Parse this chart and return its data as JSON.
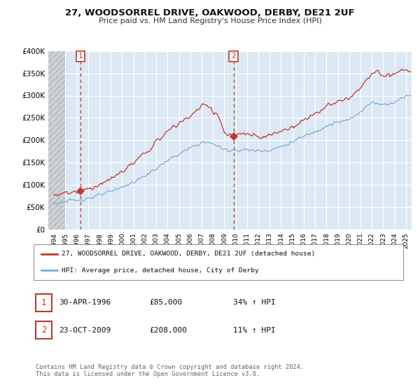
{
  "title": "27, WOODSORREL DRIVE, OAKWOOD, DERBY, DE21 2UF",
  "subtitle": "Price paid vs. HM Land Registry's House Price Index (HPI)",
  "ylim": [
    0,
    400000
  ],
  "yticks": [
    0,
    50000,
    100000,
    150000,
    200000,
    250000,
    300000,
    350000,
    400000
  ],
  "ytick_labels": [
    "£0",
    "£50K",
    "£100K",
    "£150K",
    "£200K",
    "£250K",
    "£300K",
    "£350K",
    "£400K"
  ],
  "background_color": "#ffffff",
  "plot_bg_color": "#dce9f5",
  "grid_color": "#ffffff",
  "hpi_color": "#7aadd4",
  "price_color": "#c0392b",
  "sale1_year": 1996.33,
  "sale1_price": 85000,
  "sale2_year": 2009.81,
  "sale2_price": 208000,
  "legend_entry1": "27, WOODSORREL DRIVE, OAKWOOD, DERBY, DE21 2UF (detached house)",
  "legend_entry2": "HPI: Average price, detached house, City of Derby",
  "sale1_date": "30-APR-1996",
  "sale1_price_str": "£85,000",
  "sale1_pct": "34% ↑ HPI",
  "sale2_date": "23-OCT-2009",
  "sale2_price_str": "£208,000",
  "sale2_pct": "11% ↑ HPI",
  "footer": "Contains HM Land Registry data © Crown copyright and database right 2024.\nThis data is licensed under the Open Government Licence v3.0.",
  "xmin": 1993.5,
  "xmax": 2025.5,
  "hatch_end": 1995.0
}
